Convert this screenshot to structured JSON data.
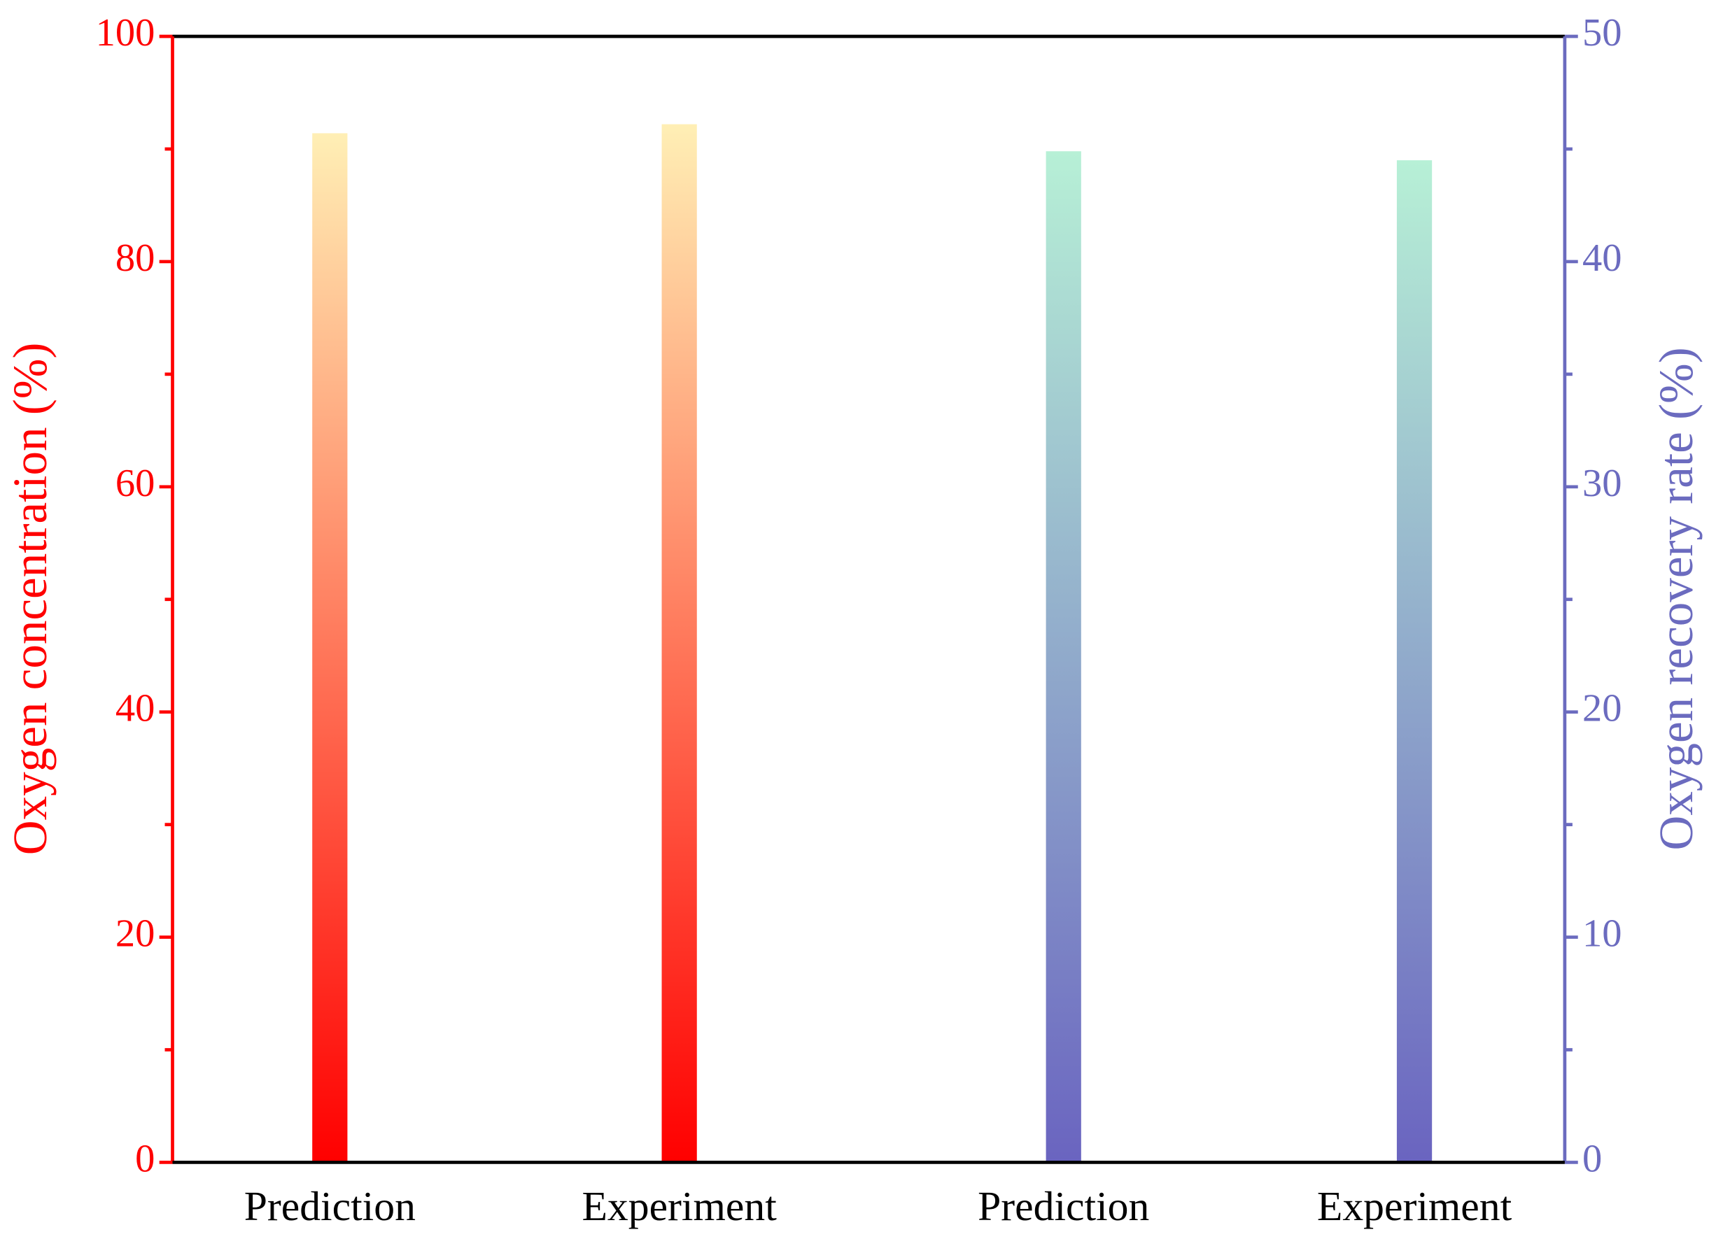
{
  "chart_data": {
    "type": "bar",
    "categories": [
      "Prediction",
      "Experiment",
      "Prediction",
      "Experiment"
    ],
    "ylabel": "Oxygen concentration (%)",
    "y2label": "Oxygen recovery rate (%)",
    "series": [
      {
        "values": [
          91.4,
          92.2,
          null,
          null
        ],
        "colors": [
          "#ff0000",
          "#ffefb5"
        ],
        "axis": "y"
      },
      {
        "values": [
          null,
          null,
          44.9,
          44.5
        ],
        "colors": [
          "#6a64c0",
          "#b7f0d6"
        ],
        "axis": "y2"
      }
    ],
    "ylim": [
      0,
      100
    ],
    "yticks": [
      0,
      20,
      40,
      60,
      80,
      100
    ],
    "ycolor": "#ff0000",
    "y2lim": [
      0,
      50
    ],
    "y2ticks": [
      0,
      10,
      20,
      30,
      40,
      50
    ],
    "y2color": "#6b6bbf"
  }
}
